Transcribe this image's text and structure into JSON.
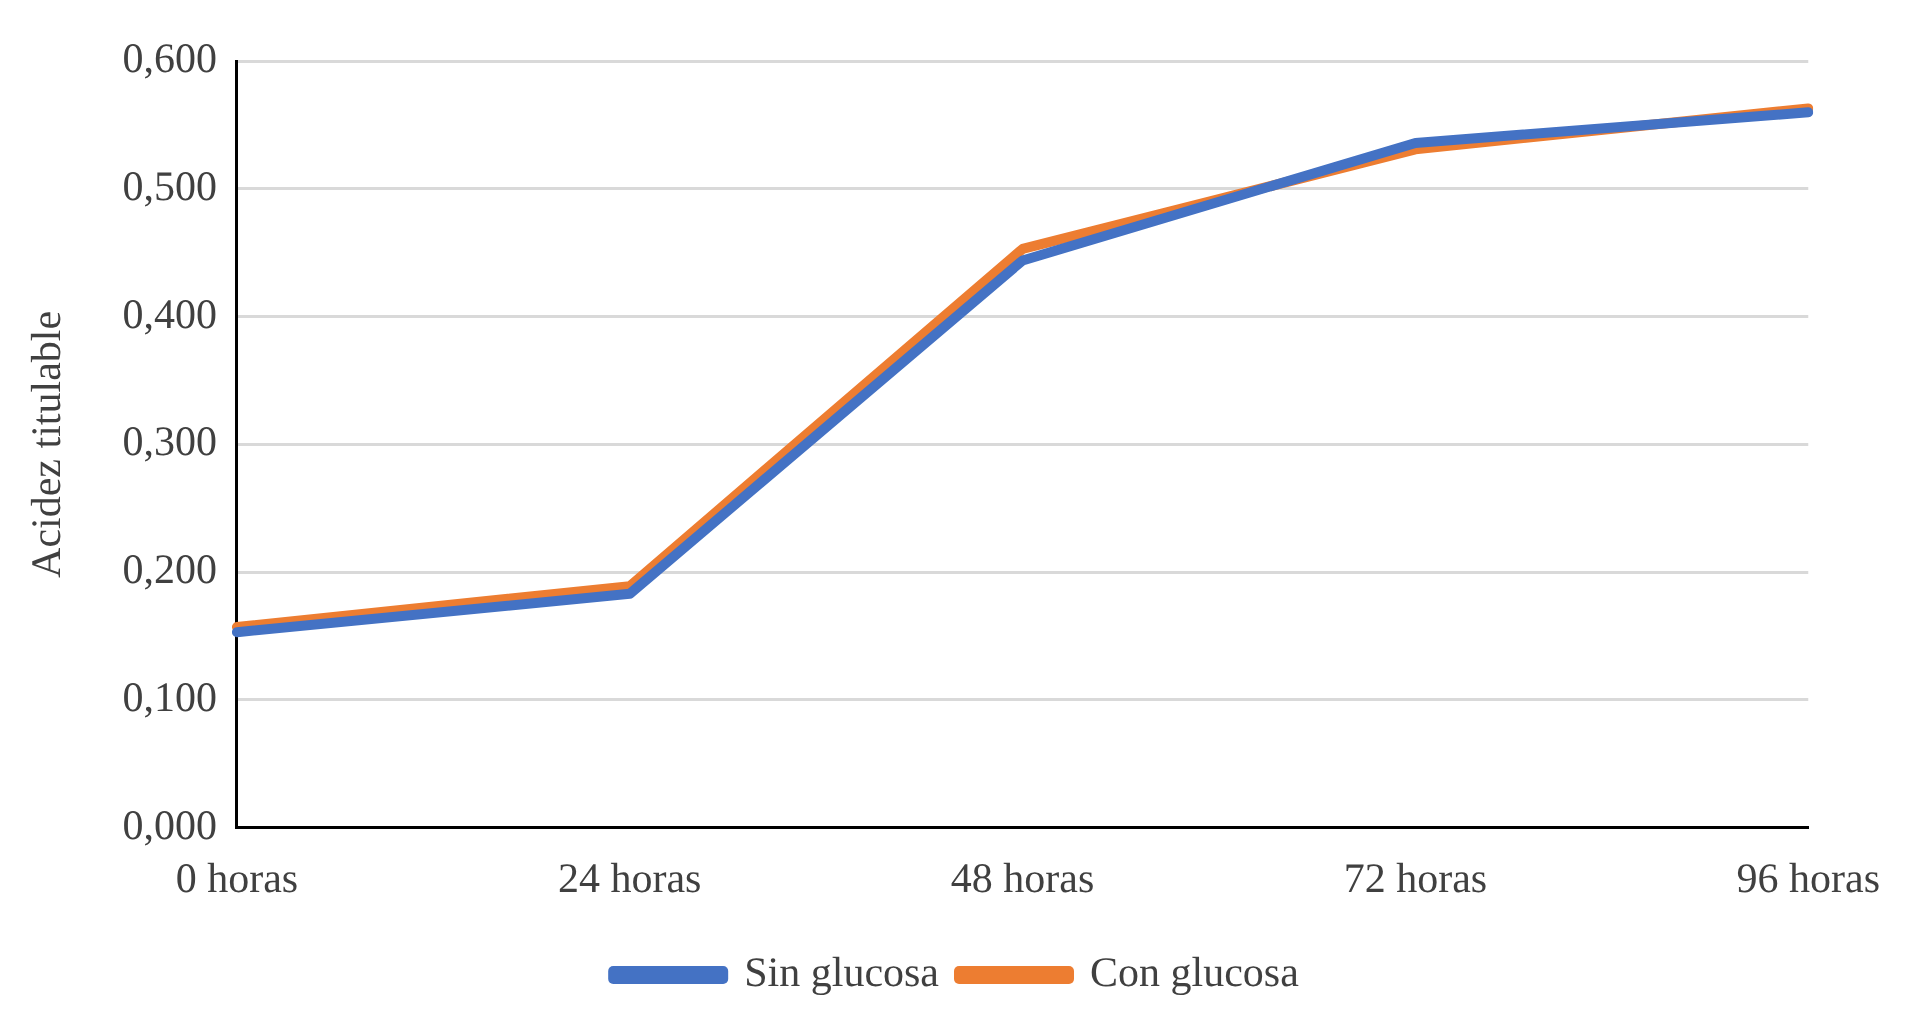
{
  "chart_data": {
    "type": "line",
    "ylabel": "Acidez titulable",
    "categories": [
      "0 horas",
      "24 horas",
      "48 horas",
      "72 horas",
      "96 horas"
    ],
    "series": [
      {
        "name": "Sin glucosa",
        "color": "#4472c4",
        "values": [
          0.153,
          0.183,
          0.444,
          0.536,
          0.56
        ]
      },
      {
        "name": "Con glucosa",
        "color": "#ed7d31",
        "values": [
          0.157,
          0.189,
          0.453,
          0.531,
          0.563
        ]
      }
    ],
    "ylim": [
      0,
      0.6
    ],
    "yticks": [
      {
        "value": 0,
        "label": "0,000"
      },
      {
        "value": 0.1,
        "label": "0,100"
      },
      {
        "value": 0.2,
        "label": "0,200"
      },
      {
        "value": 0.3,
        "label": "0,300"
      },
      {
        "value": 0.4,
        "label": "0,400"
      },
      {
        "value": 0.5,
        "label": "0,500"
      },
      {
        "value": 0.6,
        "label": "0,600"
      }
    ],
    "grid": "y",
    "legend": "bottom",
    "marker": "none",
    "line_style": "solid"
  }
}
